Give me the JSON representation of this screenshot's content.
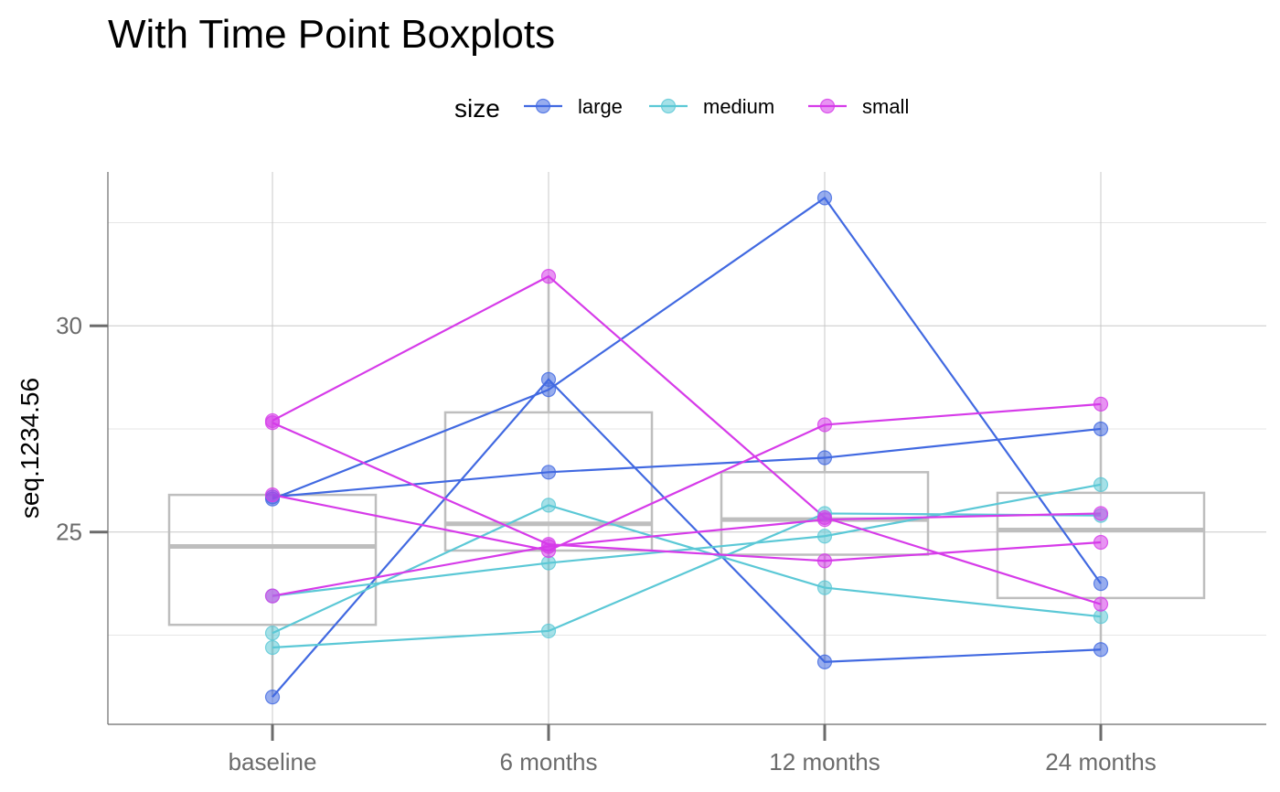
{
  "chart_data": {
    "type": "line",
    "title": "With Time Point Boxplots",
    "xlabel": "",
    "ylabel": "seq.1234.56",
    "categories": [
      "baseline",
      "6 months",
      "12 months",
      "24 months"
    ],
    "ylim": [
      20.6,
      33.9
    ],
    "y_ticks": [
      25,
      30
    ],
    "y_tick_labels": [
      "25",
      "30"
    ],
    "y_minor_gridlines": [
      22.5,
      27.5,
      32.5
    ],
    "grid": true,
    "legend": {
      "title": "size",
      "position": "top",
      "entries": [
        "large",
        "medium",
        "small"
      ]
    },
    "colors": {
      "large": "#4169E1",
      "medium": "#5BC8D6",
      "small": "#D63BE9",
      "box": "#BEBEBE",
      "grid_major": "#c8c8c8",
      "grid_minor": "#e6e6e6",
      "axis": "#6b6b6b"
    },
    "series": [
      {
        "group": "large",
        "values": [
          25.85,
          26.45,
          26.8,
          27.5
        ]
      },
      {
        "group": "large",
        "values": [
          25.8,
          28.45,
          33.1,
          23.75
        ]
      },
      {
        "group": "large",
        "values": [
          21.0,
          28.7,
          21.85,
          22.15
        ]
      },
      {
        "group": "medium",
        "values": [
          23.45,
          24.25,
          24.9,
          26.15
        ]
      },
      {
        "group": "medium",
        "values": [
          22.55,
          25.65,
          23.65,
          22.95
        ]
      },
      {
        "group": "medium",
        "values": [
          22.2,
          22.6,
          25.45,
          25.4
        ]
      },
      {
        "group": "small",
        "values": [
          27.7,
          31.2,
          25.35,
          23.25
        ]
      },
      {
        "group": "small",
        "values": [
          27.65,
          24.7,
          24.3,
          24.75
        ]
      },
      {
        "group": "small",
        "values": [
          25.9,
          24.55,
          27.6,
          28.1
        ]
      },
      {
        "group": "small",
        "values": [
          23.45,
          24.65,
          25.3,
          25.45
        ]
      }
    ],
    "boxplots": [
      {
        "category": "baseline",
        "q1": 22.75,
        "median": 24.65,
        "q3": 25.9,
        "whisker_low": 21.0,
        "whisker_high": 27.7
      },
      {
        "category": "6 months",
        "q1": 24.55,
        "median": 25.2,
        "q3": 27.9,
        "whisker_low": 22.6,
        "whisker_high": 31.2
      },
      {
        "category": "12 months",
        "q1": 24.45,
        "median": 25.3,
        "q3": 26.45,
        "whisker_low": 21.85,
        "whisker_high": 27.6
      },
      {
        "category": "24 months",
        "q1": 23.4,
        "median": 25.05,
        "q3": 25.95,
        "whisker_low": 22.15,
        "whisker_high": 28.1
      }
    ]
  }
}
